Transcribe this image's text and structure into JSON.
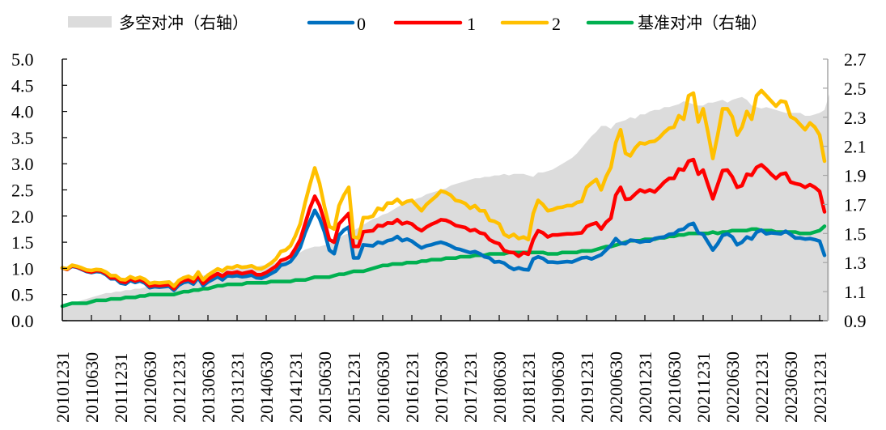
{
  "chart_data": {
    "type": "line",
    "title": "",
    "xlabel": "",
    "ylabel": "",
    "ylabel_right": "",
    "ylim": [
      0,
      5
    ],
    "ylim_right": [
      0.9,
      2.7
    ],
    "yticks": [
      "0.0",
      "0.5",
      "1.0",
      "1.5",
      "2.0",
      "2.5",
      "3.0",
      "3.5",
      "4.0",
      "4.5",
      "5.0"
    ],
    "yticks_right": [
      "0.9",
      "1.1",
      "1.3",
      "1.5",
      "1.7",
      "1.9",
      "2.1",
      "2.3",
      "2.5",
      "2.7"
    ],
    "grid": false,
    "legend_position": "top",
    "x_tick_labels": [
      "20101231",
      "20110630",
      "20111231",
      "20120630",
      "20121231",
      "20130630",
      "20131231",
      "20140630",
      "20141231",
      "20150630",
      "20151231",
      "20160630",
      "20161231",
      "20170630",
      "20171231",
      "20180630",
      "20181231",
      "20190630",
      "20191231",
      "20200630",
      "20201231",
      "20210630",
      "20211231",
      "20220630",
      "20221231",
      "20230630",
      "20231231"
    ],
    "x_start": "2010-12",
    "x_frequency": "monthly",
    "series": [
      {
        "name": "多空对冲（右轴）",
        "axis": "right",
        "kind": "area",
        "color": "#dcdcdc",
        "values": [
          1.0,
          1.01,
          1.02,
          1.03,
          1.04,
          1.05,
          1.06,
          1.07,
          1.08,
          1.09,
          1.09,
          1.1,
          1.1,
          1.11,
          1.11,
          1.12,
          1.12,
          1.13,
          1.13,
          1.14,
          1.15,
          1.15,
          1.16,
          1.16,
          1.17,
          1.18,
          1.19,
          1.2,
          1.2,
          1.21,
          1.22,
          1.23,
          1.24,
          1.24,
          1.25,
          1.25,
          1.26,
          1.26,
          1.26,
          1.27,
          1.27,
          1.28,
          1.28,
          1.29,
          1.3,
          1.31,
          1.32,
          1.34,
          1.35,
          1.37,
          1.39,
          1.4,
          1.41,
          1.41,
          1.42,
          1.43,
          1.45,
          1.47,
          1.49,
          1.5,
          1.52,
          1.54,
          1.56,
          1.58,
          1.6,
          1.61,
          1.63,
          1.64,
          1.66,
          1.68,
          1.7,
          1.71,
          1.72,
          1.74,
          1.75,
          1.77,
          1.78,
          1.79,
          1.8,
          1.81,
          1.83,
          1.84,
          1.85,
          1.86,
          1.87,
          1.88,
          1.88,
          1.89,
          1.89,
          1.9,
          1.9,
          1.91,
          1.9,
          1.91,
          1.91,
          1.91,
          1.9,
          1.89,
          1.92,
          1.92,
          1.93,
          1.94,
          1.96,
          1.98,
          2.0,
          2.02,
          2.05,
          2.09,
          2.13,
          2.17,
          2.2,
          2.24,
          2.24,
          2.22,
          2.26,
          2.27,
          2.28,
          2.3,
          2.29,
          2.32,
          2.32,
          2.34,
          2.35,
          2.35,
          2.37,
          2.37,
          2.38,
          2.39,
          2.41,
          2.4,
          2.39,
          2.38,
          2.38,
          2.4,
          2.4,
          2.41,
          2.42,
          2.4,
          2.42,
          2.43,
          2.44,
          2.42,
          2.38,
          2.37,
          2.36,
          2.37,
          2.36,
          2.35,
          2.34,
          2.33,
          2.33,
          2.33,
          2.33,
          2.31,
          2.31,
          2.32,
          2.33,
          2.35,
          2.46
        ]
      },
      {
        "name": "0",
        "axis": "left",
        "kind": "line",
        "color": "#0070c0",
        "values": [
          1.01,
          0.98,
          1.04,
          1.02,
          0.98,
          0.94,
          0.92,
          0.94,
          0.93,
          0.88,
          0.8,
          0.8,
          0.72,
          0.7,
          0.77,
          0.73,
          0.76,
          0.72,
          0.63,
          0.65,
          0.64,
          0.65,
          0.66,
          0.58,
          0.68,
          0.73,
          0.75,
          0.7,
          0.82,
          0.67,
          0.74,
          0.79,
          0.84,
          0.78,
          0.86,
          0.85,
          0.86,
          0.84,
          0.85,
          0.87,
          0.82,
          0.81,
          0.85,
          0.9,
          0.95,
          1.06,
          1.08,
          1.13,
          1.25,
          1.4,
          1.68,
          1.9,
          2.11,
          1.95,
          1.7,
          1.35,
          1.28,
          1.63,
          1.73,
          1.79,
          1.2,
          1.2,
          1.45,
          1.44,
          1.43,
          1.5,
          1.48,
          1.53,
          1.55,
          1.61,
          1.53,
          1.56,
          1.52,
          1.45,
          1.39,
          1.43,
          1.45,
          1.48,
          1.5,
          1.47,
          1.43,
          1.38,
          1.36,
          1.33,
          1.3,
          1.32,
          1.28,
          1.22,
          1.2,
          1.12,
          1.13,
          1.1,
          1.03,
          0.98,
          1.01,
          0.98,
          0.97,
          1.18,
          1.22,
          1.19,
          1.12,
          1.12,
          1.11,
          1.12,
          1.13,
          1.12,
          1.16,
          1.2,
          1.21,
          1.18,
          1.22,
          1.26,
          1.35,
          1.44,
          1.57,
          1.48,
          1.47,
          1.54,
          1.53,
          1.5,
          1.52,
          1.52,
          1.57,
          1.59,
          1.6,
          1.65,
          1.66,
          1.73,
          1.75,
          1.83,
          1.86,
          1.68,
          1.65,
          1.5,
          1.35,
          1.47,
          1.63,
          1.66,
          1.6,
          1.45,
          1.5,
          1.6,
          1.56,
          1.69,
          1.73,
          1.66,
          1.68,
          1.67,
          1.66,
          1.71,
          1.65,
          1.58,
          1.58,
          1.56,
          1.57,
          1.55,
          1.52,
          1.25
        ]
      },
      {
        "name": "1",
        "axis": "left",
        "kind": "line",
        "color": "#ff0000",
        "values": [
          1.01,
          0.98,
          1.05,
          1.03,
          0.99,
          0.95,
          0.93,
          0.96,
          0.95,
          0.9,
          0.82,
          0.82,
          0.75,
          0.73,
          0.8,
          0.76,
          0.79,
          0.75,
          0.66,
          0.68,
          0.67,
          0.68,
          0.69,
          0.61,
          0.72,
          0.77,
          0.79,
          0.74,
          0.86,
          0.71,
          0.79,
          0.85,
          0.9,
          0.85,
          0.92,
          0.91,
          0.93,
          0.9,
          0.92,
          0.94,
          0.88,
          0.88,
          0.92,
          0.98,
          1.04,
          1.15,
          1.18,
          1.23,
          1.38,
          1.55,
          1.85,
          2.15,
          2.38,
          2.2,
          1.9,
          1.55,
          1.5,
          1.85,
          1.95,
          2.05,
          1.42,
          1.42,
          1.7,
          1.71,
          1.72,
          1.82,
          1.81,
          1.87,
          1.86,
          1.93,
          1.85,
          1.88,
          1.85,
          1.77,
          1.72,
          1.79,
          1.84,
          1.88,
          1.93,
          1.92,
          1.88,
          1.82,
          1.8,
          1.78,
          1.72,
          1.74,
          1.68,
          1.66,
          1.55,
          1.5,
          1.47,
          1.34,
          1.31,
          1.3,
          1.23,
          1.3,
          1.27,
          1.55,
          1.72,
          1.68,
          1.6,
          1.64,
          1.64,
          1.65,
          1.66,
          1.66,
          1.67,
          1.68,
          1.8,
          1.84,
          1.87,
          1.75,
          1.88,
          1.96,
          2.4,
          2.55,
          2.32,
          2.33,
          2.42,
          2.5,
          2.46,
          2.5,
          2.46,
          2.55,
          2.65,
          2.72,
          2.72,
          2.9,
          2.88,
          3.05,
          3.08,
          2.8,
          2.88,
          2.6,
          2.33,
          2.6,
          2.87,
          2.88,
          2.75,
          2.55,
          2.58,
          2.8,
          2.78,
          2.93,
          2.98,
          2.9,
          2.8,
          2.72,
          2.8,
          2.82,
          2.65,
          2.62,
          2.6,
          2.55,
          2.6,
          2.55,
          2.47,
          2.08
        ]
      },
      {
        "name": "2",
        "axis": "left",
        "kind": "line",
        "color": "#ffc000",
        "values": [
          1.01,
          0.99,
          1.06,
          1.04,
          1.01,
          0.97,
          0.96,
          0.98,
          0.97,
          0.93,
          0.86,
          0.86,
          0.79,
          0.78,
          0.84,
          0.8,
          0.83,
          0.79,
          0.71,
          0.73,
          0.72,
          0.73,
          0.74,
          0.66,
          0.77,
          0.82,
          0.85,
          0.8,
          0.93,
          0.78,
          0.87,
          0.93,
          0.99,
          0.95,
          1.02,
          1.01,
          1.05,
          1.02,
          1.03,
          1.05,
          1.0,
          0.99,
          1.04,
          1.1,
          1.18,
          1.32,
          1.35,
          1.43,
          1.62,
          1.85,
          2.25,
          2.6,
          2.92,
          2.62,
          2.18,
          1.8,
          1.75,
          2.2,
          2.4,
          2.55,
          1.6,
          1.58,
          1.97,
          1.97,
          2.0,
          2.15,
          2.12,
          2.25,
          2.25,
          2.32,
          2.23,
          2.28,
          2.3,
          2.2,
          2.1,
          2.22,
          2.3,
          2.38,
          2.48,
          2.45,
          2.4,
          2.3,
          2.28,
          2.24,
          2.15,
          2.2,
          2.1,
          2.1,
          1.92,
          1.9,
          1.85,
          1.65,
          1.6,
          1.65,
          1.57,
          1.6,
          1.55,
          2.05,
          2.3,
          2.22,
          2.1,
          2.12,
          2.16,
          2.17,
          2.2,
          2.2,
          2.26,
          2.28,
          2.55,
          2.63,
          2.7,
          2.5,
          2.75,
          2.93,
          3.4,
          3.65,
          3.2,
          3.15,
          3.3,
          3.4,
          3.38,
          3.42,
          3.43,
          3.5,
          3.6,
          3.68,
          3.7,
          3.92,
          3.85,
          4.3,
          4.35,
          3.8,
          4.05,
          3.6,
          3.1,
          3.55,
          4.05,
          4.05,
          3.9,
          3.55,
          3.7,
          4.0,
          3.85,
          4.3,
          4.4,
          4.3,
          4.2,
          4.1,
          4.2,
          4.18,
          3.9,
          3.85,
          3.75,
          3.65,
          3.78,
          3.7,
          3.55,
          3.05
        ]
      },
      {
        "name": "基准对冲（右轴）",
        "axis": "right",
        "kind": "line",
        "color": "#00b050",
        "values": [
          1.0,
          1.01,
          1.02,
          1.02,
          1.02,
          1.02,
          1.03,
          1.04,
          1.04,
          1.04,
          1.05,
          1.05,
          1.05,
          1.06,
          1.06,
          1.06,
          1.07,
          1.07,
          1.08,
          1.08,
          1.08,
          1.08,
          1.08,
          1.08,
          1.09,
          1.1,
          1.1,
          1.11,
          1.11,
          1.12,
          1.12,
          1.13,
          1.14,
          1.14,
          1.15,
          1.15,
          1.15,
          1.15,
          1.16,
          1.16,
          1.16,
          1.16,
          1.16,
          1.17,
          1.17,
          1.17,
          1.17,
          1.17,
          1.18,
          1.18,
          1.18,
          1.19,
          1.2,
          1.2,
          1.2,
          1.2,
          1.21,
          1.22,
          1.22,
          1.23,
          1.24,
          1.24,
          1.24,
          1.25,
          1.26,
          1.27,
          1.28,
          1.28,
          1.29,
          1.29,
          1.29,
          1.3,
          1.3,
          1.3,
          1.31,
          1.31,
          1.32,
          1.32,
          1.32,
          1.33,
          1.33,
          1.33,
          1.34,
          1.34,
          1.34,
          1.35,
          1.35,
          1.35,
          1.36,
          1.36,
          1.36,
          1.36,
          1.37,
          1.37,
          1.37,
          1.37,
          1.37,
          1.37,
          1.37,
          1.37,
          1.36,
          1.36,
          1.36,
          1.37,
          1.37,
          1.37,
          1.37,
          1.38,
          1.38,
          1.38,
          1.39,
          1.4,
          1.41,
          1.41,
          1.42,
          1.43,
          1.44,
          1.45,
          1.45,
          1.45,
          1.46,
          1.46,
          1.46,
          1.47,
          1.47,
          1.48,
          1.48,
          1.49,
          1.49,
          1.5,
          1.5,
          1.5,
          1.5,
          1.5,
          1.51,
          1.5,
          1.51,
          1.51,
          1.52,
          1.52,
          1.52,
          1.52,
          1.53,
          1.53,
          1.52,
          1.52,
          1.52,
          1.51,
          1.51,
          1.51,
          1.51,
          1.51,
          1.5,
          1.5,
          1.5,
          1.51,
          1.52,
          1.55
        ]
      }
    ]
  }
}
